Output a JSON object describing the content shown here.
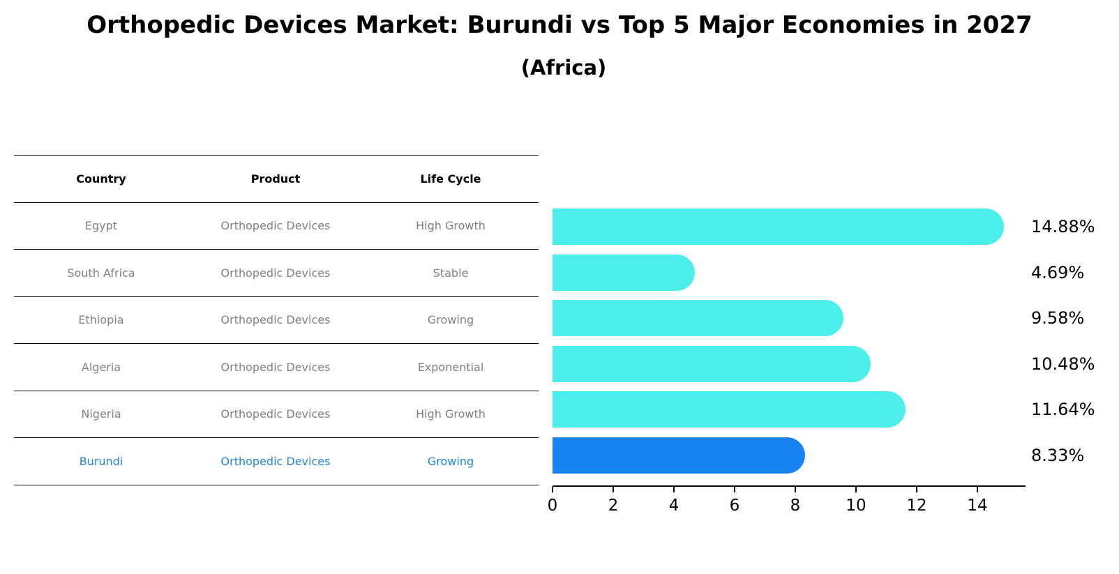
{
  "title": "Orthopedic Devices Market: Burundi vs Top 5 Major Economies in 2027",
  "subtitle": "(Africa)",
  "table": {
    "headers": [
      "Country",
      "Product",
      "Life Cycle"
    ],
    "rows": [
      {
        "country": "Egypt",
        "product": "Orthopedic Devices",
        "life_cycle": "High Growth"
      },
      {
        "country": "South Africa",
        "product": "Orthopedic Devices",
        "life_cycle": "Stable"
      },
      {
        "country": "Ethiopia",
        "product": "Orthopedic Devices",
        "life_cycle": "Growing"
      },
      {
        "country": "Algeria",
        "product": "Orthopedic Devices",
        "life_cycle": "Exponential"
      },
      {
        "country": "Nigeria",
        "product": "Orthopedic Devices",
        "life_cycle": "High Growth"
      },
      {
        "country": "Burundi",
        "product": "Orthopedic Devices",
        "life_cycle": "Growing"
      }
    ]
  },
  "colors": {
    "bar": "#4ceeec",
    "highlight": "#1a83f2",
    "highlight_text": "#1f86d6"
  },
  "chart_data": {
    "type": "bar",
    "orientation": "horizontal",
    "title": "Orthopedic Devices Market: Burundi vs Top 5 Major Economies in 2027",
    "subtitle": "(Africa)",
    "categories": [
      "Egypt",
      "South Africa",
      "Ethiopia",
      "Algeria",
      "Nigeria",
      "Burundi"
    ],
    "values": [
      14.88,
      4.69,
      9.58,
      10.48,
      11.64,
      8.33
    ],
    "value_labels": [
      "14.88%",
      "4.69%",
      "9.58%",
      "10.48%",
      "11.64%",
      "8.33%"
    ],
    "highlight": "Burundi",
    "xlabel": "",
    "ylabel": "",
    "xlim": [
      0,
      15.6
    ],
    "xticks": [
      "0",
      "2",
      "4",
      "6",
      "8",
      "10",
      "12",
      "14"
    ],
    "grid": false,
    "legend": "none"
  }
}
